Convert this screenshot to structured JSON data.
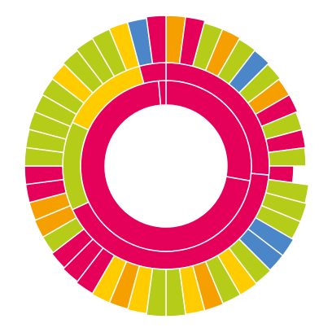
{
  "chart_data": {
    "type": "sunburst",
    "rings": [
      {
        "values": [
          100,
          255,
          5
        ],
        "colors": [
          "#e5005a",
          "#e5005a",
          "#e5005a"
        ]
      },
      {
        "values": [
          95,
          150,
          50,
          50,
          15
        ],
        "colors": [
          "#e5005a",
          "#e5005a",
          "#b5cc18",
          "#ffcc00",
          "#e5005a"
        ]
      },
      {
        "values": [
          7.5,
          7.5,
          7.5,
          7.5,
          7.5,
          7.5,
          7.5,
          7.5,
          7.5,
          7.5,
          7.5,
          7.5,
          7.5,
          7.5,
          7.5,
          7.5,
          7.5,
          7.5,
          7.5,
          7.5,
          7.5,
          7.5,
          7.5,
          7.5,
          7.5,
          7.5,
          7.5,
          7.5,
          7.5,
          7.5,
          7.5,
          7.5,
          7.5,
          7.5,
          7.5,
          7.5,
          7.5,
          7.5,
          7.5,
          7.5,
          7.5,
          7.5,
          7.5,
          7.5,
          7.5,
          7.5,
          7.5,
          7.5
        ],
        "colors": [
          "#f5a000",
          "#e5005a",
          "#b5cc18",
          "#f5a000",
          "#b5cc18",
          "#4a86c8",
          "#b5cc18",
          "#f5a000",
          "#e5005a",
          "#b5cc18",
          "#e5005a",
          "#b5cc18",
          "#e5005a",
          "#b5cc18",
          "#b5cc18",
          "#b5cc18",
          "#4a86c8",
          "#4a86c8",
          "#b5cc18",
          "#ffcc00",
          "#b5cc18",
          "#f5a000",
          "#ffcc00",
          "#b5cc18",
          "#b5cc18",
          "#ffcc00",
          "#f5a000",
          "#ffcc00",
          "#e5005a",
          "#e5005a",
          "#e5005a",
          "#b5cc18",
          "#f5a000",
          "#f5a000",
          "#e5005a",
          "#e5005a",
          "#b5cc18",
          "#b5cc18",
          "#b5cc18",
          "#b5cc18",
          "#b5cc18",
          "#ffcc00",
          "#b5cc18",
          "#b5cc18",
          "#b5cc18",
          "#ffcc00",
          "#4a86c8",
          "#e5005a"
        ],
        "depths": [
          58,
          58,
          55,
          55,
          53,
          52,
          50,
          48,
          48,
          46,
          46,
          45,
          30,
          50,
          52,
          52,
          54,
          54,
          55,
          56,
          56,
          57,
          57,
          58,
          58,
          56,
          55,
          55,
          54,
          52,
          50,
          48,
          48,
          47,
          47,
          47,
          47,
          47,
          48,
          48,
          49,
          50,
          52,
          54,
          55,
          56,
          56,
          58
        ]
      }
    ]
  }
}
